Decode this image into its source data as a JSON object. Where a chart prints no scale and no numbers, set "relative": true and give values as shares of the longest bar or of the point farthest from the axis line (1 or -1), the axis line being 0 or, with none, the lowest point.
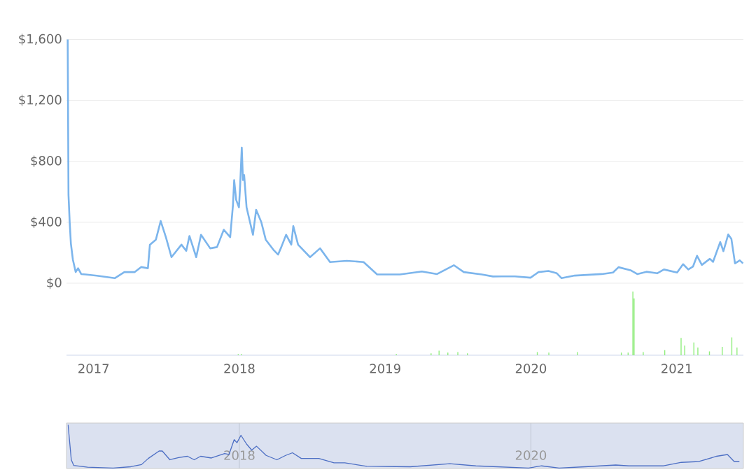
{
  "chart_data": [
    {
      "type": "line",
      "color": "#7cb5ec",
      "xlim": [
        "2016-10-25",
        "2021-06-17"
      ],
      "ylim": [
        0,
        1600
      ],
      "yticks": [
        {
          "value": 0,
          "label": "$0"
        },
        {
          "value": 400,
          "label": "$400"
        },
        {
          "value": 800,
          "label": "$800"
        },
        {
          "value": 1200,
          "label": "$1,200"
        },
        {
          "value": 1600,
          "label": "$1,600"
        }
      ],
      "grid": "y",
      "tick_labels": "y",
      "x": [
        "2016-10-28",
        "2016-10-30",
        "2016-11-02",
        "2016-11-05",
        "2016-11-10",
        "2016-11-17",
        "2016-11-23",
        "2016-12-01",
        "2016-12-12",
        "2017-01-09",
        "2017-02-23",
        "2017-03-19",
        "2017-04-14",
        "2017-04-30",
        "2017-05-17",
        "2017-05-22",
        "2017-06-06",
        "2017-06-18",
        "2017-07-01",
        "2017-07-15",
        "2017-08-09",
        "2017-08-21",
        "2017-08-29",
        "2017-09-15",
        "2017-09-27",
        "2017-10-20",
        "2017-11-06",
        "2017-11-23",
        "2017-12-09",
        "2017-12-16",
        "2017-12-19",
        "2017-12-24",
        "2017-12-31",
        "2018-01-03",
        "2018-01-07",
        "2018-01-10",
        "2018-01-13",
        "2018-01-19",
        "2018-02-04",
        "2018-02-12",
        "2018-02-25",
        "2018-03-08",
        "2018-03-27",
        "2018-04-08",
        "2018-04-16",
        "2018-04-28",
        "2018-05-11",
        "2018-05-16",
        "2018-05-28",
        "2018-06-27",
        "2018-07-22",
        "2018-08-16",
        "2018-09-27",
        "2018-11-08",
        "2018-12-12",
        "2019-02-07",
        "2019-04-03",
        "2019-05-11",
        "2019-06-22",
        "2019-07-17",
        "2019-08-31",
        "2019-09-28",
        "2019-10-20",
        "2019-11-22",
        "2019-12-31",
        "2020-01-20",
        "2020-02-14",
        "2020-03-06",
        "2020-03-18",
        "2020-04-20",
        "2020-06-27",
        "2020-07-25",
        "2020-08-08",
        "2020-09-07",
        "2020-09-24",
        "2020-10-17",
        "2020-11-13",
        "2020-11-30",
        "2021-01-02",
        "2021-01-17",
        "2021-01-30",
        "2021-02-11",
        "2021-02-21",
        "2021-03-05",
        "2021-03-25",
        "2021-04-02",
        "2021-04-20",
        "2021-04-28",
        "2021-05-10",
        "2021-05-18",
        "2021-05-27",
        "2021-06-08",
        "2021-06-16"
      ],
      "values": [
        1600,
        580,
        400,
        260,
        155,
        73,
        98,
        60,
        57,
        49,
        33,
        73,
        73,
        106,
        98,
        253,
        286,
        408,
        302,
        171,
        253,
        212,
        310,
        171,
        318,
        229,
        237,
        351,
        302,
        514,
        677,
        547,
        498,
        645,
        890,
        677,
        710,
        498,
        318,
        482,
        400,
        286,
        220,
        188,
        237,
        318,
        253,
        375,
        253,
        171,
        229,
        139,
        147,
        139,
        57,
        57,
        77,
        60,
        118,
        73,
        57,
        44,
        45,
        45,
        36,
        73,
        80,
        65,
        33,
        50,
        60,
        70,
        105,
        85,
        60,
        75,
        65,
        90,
        70,
        125,
        90,
        110,
        180,
        120,
        160,
        140,
        270,
        210,
        320,
        290,
        130,
        150,
        130
      ]
    },
    {
      "type": "bar",
      "color": "#90ed7d",
      "relative": true,
      "xlim": [
        "2016-10-25",
        "2021-06-17"
      ],
      "xticks": [
        {
          "value": "2017-01-01",
          "label": "2017"
        },
        {
          "value": "2018-01-01",
          "label": "2018"
        },
        {
          "value": "2019-01-01",
          "label": "2019"
        },
        {
          "value": "2020-01-01",
          "label": "2020"
        },
        {
          "value": "2021-01-01",
          "label": "2021"
        }
      ],
      "tick_labels": "x",
      "x": [
        "2017-12-29",
        "2018-01-06",
        "2019-01-29",
        "2019-04-26",
        "2019-05-16",
        "2019-06-07",
        "2019-07-02",
        "2019-07-26",
        "2020-01-17",
        "2020-02-15",
        "2020-04-27",
        "2020-08-15",
        "2020-09-01",
        "2020-09-13",
        "2020-09-16",
        "2020-10-09",
        "2020-12-02",
        "2021-01-12",
        "2021-01-21",
        "2021-02-13",
        "2021-02-23",
        "2021-03-24",
        "2021-04-25",
        "2021-05-19",
        "2021-06-01"
      ],
      "values": [
        0.02,
        0.02,
        0.02,
        0.03,
        0.07,
        0.04,
        0.05,
        0.03,
        0.05,
        0.04,
        0.05,
        0.04,
        0.04,
        1.0,
        0.89,
        0.05,
        0.08,
        0.27,
        0.15,
        0.2,
        0.12,
        0.06,
        0.13,
        0.28,
        0.12
      ]
    },
    {
      "type": "line",
      "color": "#4d6fc4",
      "relative": true,
      "xlim": [
        "2016-10-25",
        "2021-06-17"
      ],
      "xticks": [
        {
          "value": "2018-01-01",
          "label": "2018"
        },
        {
          "value": "2020-01-01",
          "label": "2020"
        }
      ],
      "grid": "x",
      "tick_labels": "x",
      "x": [
        "2016-10-29",
        "2016-11-06",
        "2016-11-12",
        "2016-12-17",
        "2017-02-19",
        "2017-04-04",
        "2017-05-01",
        "2017-05-18",
        "2017-06-14",
        "2017-06-22",
        "2017-07-11",
        "2017-08-02",
        "2017-08-24",
        "2017-09-10",
        "2017-09-26",
        "2017-10-23",
        "2017-11-25",
        "2017-12-06",
        "2017-12-19",
        "2017-12-26",
        "2018-01-05",
        "2018-01-19",
        "2018-02-01",
        "2018-02-13",
        "2018-03-09",
        "2018-04-05",
        "2018-04-27",
        "2018-05-14",
        "2018-06-05",
        "2018-07-19",
        "2018-08-26",
        "2018-09-22",
        "2018-11-16",
        "2019-03-05",
        "2019-06-12",
        "2019-08-16",
        "2019-12-26",
        "2020-01-28",
        "2020-03-12",
        "2020-05-16",
        "2020-08-01",
        "2020-09-03",
        "2020-11-29",
        "2021-01-13",
        "2021-02-26",
        "2021-04-11",
        "2021-05-08",
        "2021-05-25",
        "2021-06-07"
      ],
      "values": [
        1.0,
        0.2,
        0.07,
        0.03,
        0.01,
        0.04,
        0.09,
        0.23,
        0.4,
        0.4,
        0.2,
        0.25,
        0.28,
        0.2,
        0.28,
        0.24,
        0.34,
        0.32,
        0.66,
        0.59,
        0.76,
        0.56,
        0.42,
        0.51,
        0.3,
        0.2,
        0.3,
        0.36,
        0.23,
        0.23,
        0.13,
        0.13,
        0.05,
        0.04,
        0.11,
        0.06,
        0.01,
        0.06,
        0.01,
        0.04,
        0.08,
        0.06,
        0.06,
        0.14,
        0.16,
        0.28,
        0.32,
        0.16,
        0.16
      ]
    }
  ]
}
